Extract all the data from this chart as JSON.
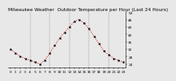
{
  "title": "Milwaukee Weather  Outdoor Temperature per Hour (Last 24 Hours)",
  "hours": [
    0,
    1,
    2,
    3,
    4,
    5,
    6,
    7,
    8,
    9,
    10,
    11,
    12,
    13,
    14,
    15,
    16,
    17,
    18,
    19,
    20,
    21,
    22,
    23
  ],
  "temps": [
    32,
    30,
    28,
    27,
    26,
    25,
    24,
    26,
    30,
    34,
    38,
    41,
    44,
    47,
    48,
    46,
    43,
    39,
    35,
    31,
    29,
    27,
    26,
    25
  ],
  "line_color": "#cc0000",
  "marker_color": "#000000",
  "bg_color": "#e8e8e8",
  "plot_bg_color": "#e8e8e8",
  "ylim": [
    22,
    52
  ],
  "yticks": [
    24,
    28,
    32,
    36,
    40,
    44,
    48,
    52
  ],
  "xticks": [
    0,
    1,
    2,
    3,
    4,
    5,
    6,
    7,
    8,
    9,
    10,
    11,
    12,
    13,
    14,
    15,
    16,
    17,
    18,
    19,
    20,
    21,
    22,
    23
  ],
  "vgrid_positions": [
    4,
    8,
    12,
    16,
    20
  ],
  "grid_color": "#888888",
  "title_fontsize": 4.2,
  "tick_fontsize": 3.2,
  "line_width": 0.7,
  "marker_size": 1.2
}
